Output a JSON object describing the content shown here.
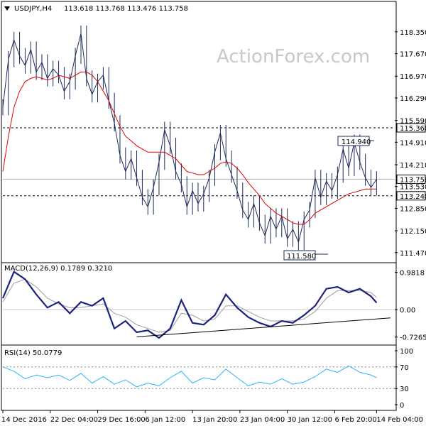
{
  "header": {
    "symbol": "USDJPY,H4",
    "ohlc": "113.618 113.768 113.476 113.758",
    "menu_icon": "triangle-down-icon"
  },
  "watermark": "ActionForex.com",
  "colors": {
    "price": "#1a2a5a",
    "ma": "#e00000",
    "macd": "#1a237e",
    "signal": "#9e9e9e",
    "rsi": "#29b6f6",
    "trendline": "#000000",
    "grid": "#000000",
    "current_label_bg": "#ffffff"
  },
  "chart_data": [
    {
      "type": "line",
      "name": "price",
      "title": "USDJPY,H4",
      "x_ticks": [
        "14 Dec 2016",
        "22 Dec 04:00",
        "29 Dec 16:00",
        "6 Jan 12:00",
        "13 Jan 20:00",
        "23 Jan 04:00",
        "30 Jan 12:00",
        "6 Feb 20:00",
        "14 Feb 04:00"
      ],
      "y_ticks": [
        "118.350",
        "117.670",
        "116.970",
        "116.290",
        "115.590",
        "114.910",
        "114.210",
        "113.530",
        "112.850",
        "112.150",
        "111.470"
      ],
      "ylim": [
        111.2,
        118.9
      ],
      "highlighted_levels": [
        "115.360",
        "113.240"
      ],
      "current_price": "113.758",
      "annotations": [
        "114.940",
        "111.580"
      ],
      "x": [
        0,
        4,
        8,
        12,
        16,
        20,
        24,
        28,
        32,
        36,
        40,
        44,
        48,
        52,
        56,
        60,
        64,
        68,
        72,
        76,
        80,
        84,
        88,
        92,
        96,
        100,
        104,
        108,
        112,
        116,
        120,
        124,
        128,
        132,
        136,
        140,
        144,
        148,
        152,
        156,
        160,
        164,
        168,
        172,
        176,
        180,
        184,
        188,
        192,
        196,
        200,
        204,
        208,
        212,
        216,
        220,
        224,
        228,
        232,
        236,
        240,
        244,
        248,
        252,
        256,
        260,
        264,
        268
      ],
      "price": [
        116.0,
        117.5,
        118.1,
        117.6,
        117.3,
        117.8,
        117.1,
        117.4,
        116.9,
        117.2,
        117.0,
        116.5,
        116.8,
        117.6,
        118.3,
        116.9,
        116.4,
        116.8,
        117.0,
        116.2,
        115.5,
        114.5,
        114.0,
        114.4,
        113.8,
        113.2,
        112.9,
        113.5,
        114.3,
        115.3,
        114.8,
        114.0,
        113.6,
        112.9,
        113.4,
        113.0,
        113.3,
        113.8,
        114.6,
        115.2,
        114.4,
        113.9,
        113.4,
        112.8,
        112.5,
        113.0,
        112.4,
        112.0,
        112.6,
        112.2,
        112.6,
        111.9,
        112.2,
        111.8,
        112.5,
        112.8,
        113.8,
        113.2,
        113.7,
        113.4,
        113.9,
        114.7,
        114.1,
        114.9,
        114.3,
        113.8,
        113.5,
        113.758
      ],
      "ma": [
        114.0,
        115.1,
        116.0,
        116.5,
        116.8,
        116.9,
        116.95,
        116.9,
        116.85,
        116.9,
        117.0,
        116.95,
        116.9,
        117.0,
        117.1,
        117.1,
        117.0,
        116.8,
        116.5,
        116.2,
        115.8,
        115.4,
        115.1,
        114.95,
        114.8,
        114.7,
        114.6,
        114.6,
        114.6,
        114.6,
        114.5,
        114.4,
        114.2,
        114.0,
        113.95,
        113.9,
        113.9,
        114.0,
        114.1,
        114.25,
        114.3,
        114.25,
        114.1,
        113.9,
        113.65,
        113.45,
        113.25,
        113.0,
        112.85,
        112.7,
        112.6,
        112.5,
        112.4,
        112.35,
        112.35,
        112.5,
        112.7,
        112.8,
        112.9,
        113.0,
        113.1,
        113.2,
        113.3,
        113.35,
        113.4,
        113.45,
        113.45,
        113.45
      ]
    },
    {
      "type": "line",
      "name": "MACD(12,26,9) 0.1789 0.3210",
      "y_ticks": [
        "0.9818",
        "0.00",
        "-0.7265"
      ],
      "ylim": [
        -0.9,
        1.2
      ],
      "x": [
        0,
        8,
        16,
        24,
        32,
        40,
        48,
        56,
        64,
        72,
        80,
        88,
        96,
        104,
        112,
        120,
        128,
        136,
        144,
        152,
        160,
        168,
        176,
        184,
        192,
        200,
        208,
        216,
        224,
        232,
        240,
        248,
        256,
        264,
        268
      ],
      "macd": [
        0.3,
        1.0,
        0.8,
        0.4,
        0.05,
        0.2,
        -0.1,
        0.2,
        0.1,
        0.3,
        -0.5,
        -0.3,
        -0.6,
        -0.55,
        -0.75,
        -0.5,
        0.25,
        -0.35,
        -0.4,
        -0.15,
        0.4,
        0.05,
        -0.2,
        -0.35,
        -0.45,
        -0.3,
        -0.35,
        -0.15,
        0.1,
        0.55,
        0.6,
        0.45,
        0.55,
        0.35,
        0.18
      ],
      "signal": [
        0.2,
        0.7,
        0.8,
        0.6,
        0.3,
        0.15,
        0.05,
        0.05,
        0.1,
        0.15,
        -0.1,
        -0.2,
        -0.4,
        -0.5,
        -0.6,
        -0.55,
        -0.1,
        -0.15,
        -0.3,
        -0.25,
        0.1,
        0.1,
        -0.05,
        -0.2,
        -0.3,
        -0.3,
        -0.3,
        -0.25,
        -0.05,
        0.3,
        0.5,
        0.5,
        0.5,
        0.45,
        0.32
      ],
      "trendline": {
        "x": [
          96,
          278
        ],
        "y": [
          -0.72,
          -0.22
        ]
      }
    },
    {
      "type": "line",
      "name": "RSI(14) 50.0779",
      "y_ticks": [
        "100",
        "70",
        "30",
        "0"
      ],
      "ylim": [
        0,
        100
      ],
      "x": [
        0,
        8,
        16,
        24,
        32,
        40,
        48,
        56,
        64,
        72,
        80,
        88,
        96,
        104,
        112,
        120,
        128,
        136,
        144,
        152,
        160,
        168,
        176,
        184,
        192,
        200,
        208,
        216,
        224,
        232,
        240,
        248,
        256,
        264,
        268
      ],
      "rsi": [
        70,
        62,
        48,
        55,
        50,
        55,
        45,
        58,
        40,
        52,
        38,
        46,
        33,
        40,
        35,
        50,
        62,
        40,
        50,
        46,
        66,
        50,
        35,
        42,
        38,
        48,
        38,
        42,
        52,
        66,
        60,
        72,
        60,
        55,
        50
      ]
    }
  ],
  "x_labels": [
    "14 Dec 2016",
    "22 Dec 04:00",
    "29 Dec 16:00",
    "6 Jan 12:00",
    "13 Jan 20:00",
    "23 Jan 04:00",
    "30 Jan 12:00",
    "6 Feb 20:00",
    "14 Feb 04:00"
  ],
  "price_axis": [
    "118.350",
    "117.670",
    "116.970",
    "116.290",
    "115.590",
    "114.910",
    "114.210",
    "113.530",
    "112.850",
    "112.150",
    "111.470"
  ],
  "highlight_labels": [
    "115.360",
    "113.240"
  ],
  "current_price_label": "113.758",
  "annot_high": "114.940",
  "annot_low": "111.580",
  "macd_label": "MACD(12,26,9) 0.1789 0.3210",
  "macd_axis": [
    "0.9818",
    "0.00",
    "-0.7265"
  ],
  "rsi_label": "RSI(14) 50.0779",
  "rsi_axis": [
    "100",
    "70",
    "30",
    "0"
  ]
}
